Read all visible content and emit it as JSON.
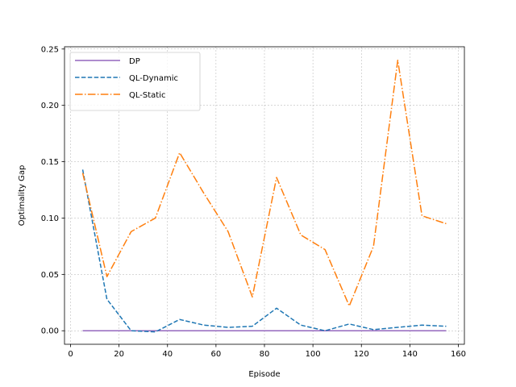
{
  "chart_data": {
    "type": "line",
    "title": "",
    "xlabel": "Episode",
    "ylabel": "Optimality Gap",
    "xlim": [
      -2.5,
      162.5
    ],
    "ylim": [
      -0.012,
      0.252
    ],
    "xticks": [
      0,
      20,
      40,
      60,
      80,
      100,
      120,
      140,
      160
    ],
    "yticks": [
      0.0,
      0.05,
      0.1,
      0.15,
      0.2,
      0.25
    ],
    "xtick_labels": [
      "0",
      "20",
      "40",
      "60",
      "80",
      "100",
      "120",
      "140",
      "160"
    ],
    "ytick_labels": [
      "0.00",
      "0.05",
      "0.10",
      "0.15",
      "0.20",
      "0.25"
    ],
    "grid": true,
    "legend_position": "top-left",
    "x": [
      5,
      15,
      25,
      35,
      45,
      55,
      65,
      75,
      85,
      95,
      105,
      115,
      125,
      135,
      145,
      155
    ],
    "series": [
      {
        "name": "DP",
        "color": "#9467bd",
        "dash": "solid",
        "values": [
          0,
          0,
          0,
          0,
          0,
          0,
          0,
          0,
          0,
          0,
          0,
          0,
          0,
          0,
          0,
          0
        ]
      },
      {
        "name": "QL-Dynamic",
        "color": "#1f77b4",
        "dash": "dashed",
        "values": [
          0.143,
          0.028,
          0.0,
          -0.001,
          0.01,
          0.005,
          0.003,
          0.004,
          0.02,
          0.005,
          0.0,
          0.006,
          0.001,
          0.003,
          0.005,
          0.004
        ]
      },
      {
        "name": "QL-Static",
        "color": "#ff7f0e",
        "dash": "dashdot",
        "values": [
          0.14,
          0.048,
          0.088,
          0.1,
          0.158,
          0.122,
          0.088,
          0.03,
          0.136,
          0.085,
          0.072,
          0.022,
          0.075,
          0.24,
          0.102,
          0.095
        ]
      }
    ]
  }
}
